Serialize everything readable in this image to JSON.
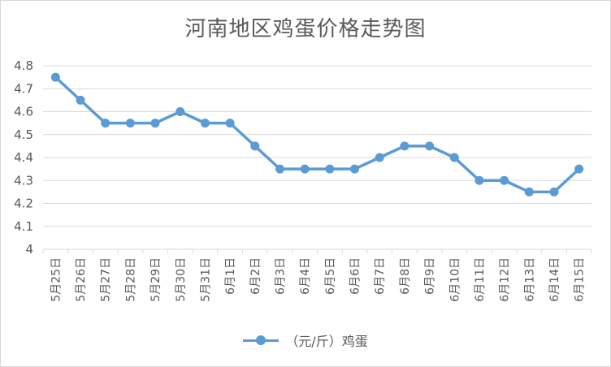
{
  "chart_data": {
    "type": "line",
    "title": "河南地区鸡蛋价格走势图",
    "categories": [
      "5月25日",
      "5月26日",
      "5月27日",
      "5月28日",
      "5月29日",
      "5月30日",
      "5月31日",
      "6月1日",
      "6月2日",
      "6月3日",
      "6月4日",
      "6月5日",
      "6月6日",
      "6月7日",
      "6月8日",
      "6月9日",
      "6月10日",
      "6月11日",
      "6月12日",
      "6月13日",
      "6月14日",
      "6月15日"
    ],
    "series": [
      {
        "name": "（元/斤）鸡蛋",
        "values": [
          4.75,
          4.65,
          4.55,
          4.55,
          4.55,
          4.6,
          4.55,
          4.55,
          4.45,
          4.35,
          4.35,
          4.35,
          4.35,
          4.4,
          4.45,
          4.45,
          4.4,
          4.3,
          4.3,
          4.25,
          4.25,
          4.35
        ]
      }
    ],
    "yticks": [
      "4",
      "4.1",
      "4.2",
      "4.3",
      "4.4",
      "4.5",
      "4.6",
      "4.7",
      "4.8"
    ],
    "ylim": [
      4,
      4.8
    ],
    "xlabel": "",
    "ylabel": "",
    "grid": true,
    "legend_position": "bottom",
    "line_color": "#5b9bd5",
    "grid_color": "#d9d9d9"
  }
}
